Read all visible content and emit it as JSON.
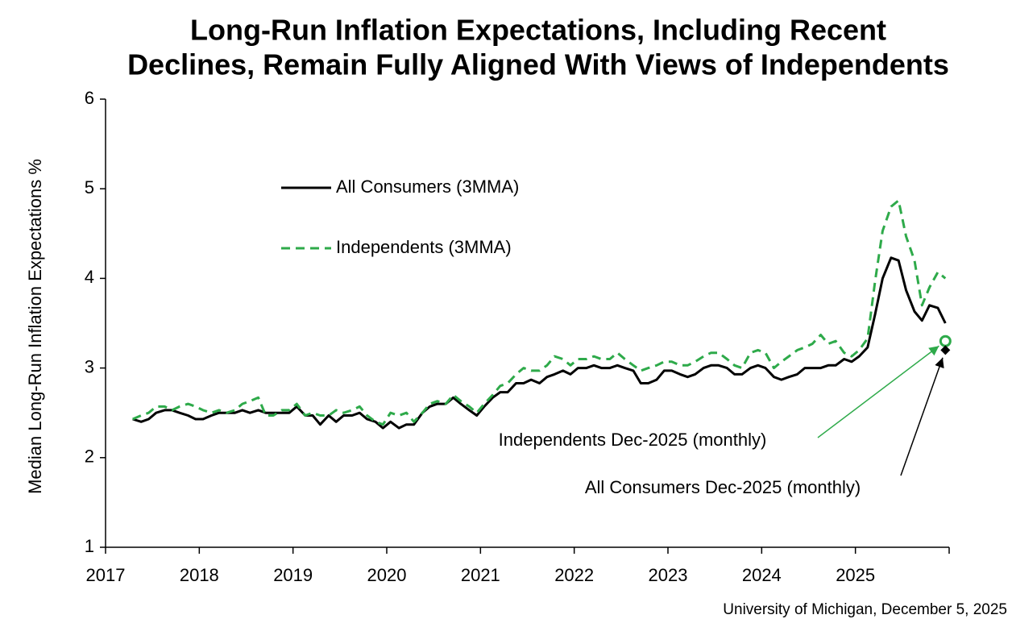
{
  "chart_data": {
    "type": "line",
    "title": [
      "Long-Run Inflation Expectations, Including Recent",
      "Declines, Remain Fully Aligned With Views of Independents"
    ],
    "y_label": "Median Long-Run Inflation Expectations %",
    "source": "University of Michigan, December 5, 2025",
    "xlim": [
      2017,
      2026
    ],
    "xticks": [
      2017,
      2018,
      2019,
      2020,
      2021,
      2022,
      2023,
      2024,
      2025
    ],
    "ylim": [
      1,
      6
    ],
    "yticks": [
      1,
      2,
      3,
      4,
      5,
      6
    ],
    "grid": false,
    "x": [
      2017.29,
      2017.38,
      2017.46,
      2017.54,
      2017.63,
      2017.71,
      2017.79,
      2017.88,
      2017.96,
      2018.04,
      2018.13,
      2018.21,
      2018.29,
      2018.38,
      2018.46,
      2018.54,
      2018.63,
      2018.71,
      2018.79,
      2018.88,
      2018.96,
      2019.04,
      2019.13,
      2019.21,
      2019.29,
      2019.38,
      2019.46,
      2019.54,
      2019.63,
      2019.71,
      2019.79,
      2019.88,
      2019.96,
      2020.04,
      2020.13,
      2020.21,
      2020.29,
      2020.38,
      2020.46,
      2020.54,
      2020.63,
      2020.71,
      2020.79,
      2020.88,
      2020.96,
      2021.04,
      2021.13,
      2021.21,
      2021.29,
      2021.38,
      2021.46,
      2021.54,
      2021.63,
      2021.71,
      2021.79,
      2021.88,
      2021.96,
      2022.04,
      2022.13,
      2022.21,
      2022.29,
      2022.38,
      2022.46,
      2022.54,
      2022.63,
      2022.71,
      2022.79,
      2022.88,
      2022.96,
      2023.04,
      2023.13,
      2023.21,
      2023.29,
      2023.38,
      2023.46,
      2023.54,
      2023.63,
      2023.71,
      2023.79,
      2023.88,
      2023.96,
      2024.04,
      2024.13,
      2024.21,
      2024.29,
      2024.38,
      2024.46,
      2024.54,
      2024.63,
      2024.71,
      2024.79,
      2024.88,
      2024.96,
      2025.04,
      2025.13,
      2025.21,
      2025.29,
      2025.38,
      2025.46,
      2025.54,
      2025.63,
      2025.71,
      2025.79,
      2025.88,
      2025.96
    ],
    "series": [
      {
        "name": "All Consumers (3MMA)",
        "color": "#000000",
        "style": "solid",
        "values": [
          2.43,
          2.4,
          2.43,
          2.5,
          2.53,
          2.53,
          2.5,
          2.47,
          2.43,
          2.43,
          2.47,
          2.5,
          2.5,
          2.5,
          2.53,
          2.5,
          2.53,
          2.5,
          2.5,
          2.5,
          2.5,
          2.57,
          2.47,
          2.47,
          2.37,
          2.47,
          2.4,
          2.47,
          2.47,
          2.5,
          2.43,
          2.4,
          2.33,
          2.4,
          2.33,
          2.37,
          2.37,
          2.5,
          2.57,
          2.6,
          2.6,
          2.67,
          2.6,
          2.53,
          2.47,
          2.57,
          2.67,
          2.73,
          2.73,
          2.83,
          2.83,
          2.87,
          2.83,
          2.9,
          2.93,
          2.97,
          2.93,
          3.0,
          3.0,
          3.03,
          3.0,
          3.0,
          3.03,
          3.0,
          2.97,
          2.83,
          2.83,
          2.87,
          2.97,
          2.97,
          2.93,
          2.9,
          2.93,
          3.0,
          3.03,
          3.03,
          3.0,
          2.93,
          2.93,
          3.0,
          3.03,
          3.0,
          2.9,
          2.87,
          2.9,
          2.93,
          3.0,
          3.0,
          3.0,
          3.03,
          3.03,
          3.1,
          3.07,
          3.13,
          3.23,
          3.6,
          4.0,
          4.23,
          4.2,
          3.87,
          3.63,
          3.53,
          3.7,
          3.67,
          3.5
        ]
      },
      {
        "name": "Independents (3MMA)",
        "color": "#2eaa4a",
        "style": "dashed",
        "values": [
          2.43,
          2.47,
          2.5,
          2.57,
          2.57,
          2.53,
          2.57,
          2.6,
          2.57,
          2.53,
          2.5,
          2.53,
          2.5,
          2.53,
          2.6,
          2.63,
          2.67,
          2.47,
          2.47,
          2.53,
          2.53,
          2.6,
          2.47,
          2.5,
          2.47,
          2.47,
          2.53,
          2.5,
          2.53,
          2.57,
          2.47,
          2.4,
          2.37,
          2.5,
          2.47,
          2.5,
          2.4,
          2.5,
          2.6,
          2.63,
          2.6,
          2.7,
          2.63,
          2.57,
          2.5,
          2.6,
          2.7,
          2.8,
          2.83,
          2.93,
          3.0,
          2.97,
          2.97,
          3.03,
          3.13,
          3.1,
          3.03,
          3.1,
          3.1,
          3.13,
          3.1,
          3.1,
          3.17,
          3.1,
          3.03,
          2.97,
          3.0,
          3.03,
          3.07,
          3.07,
          3.03,
          3.03,
          3.07,
          3.13,
          3.17,
          3.17,
          3.1,
          3.03,
          3.0,
          3.17,
          3.2,
          3.17,
          3.0,
          3.07,
          3.13,
          3.2,
          3.23,
          3.27,
          3.37,
          3.27,
          3.3,
          3.17,
          3.13,
          3.2,
          3.33,
          3.97,
          4.53,
          4.8,
          4.87,
          4.47,
          4.2,
          3.7,
          3.9,
          4.07,
          4.0
        ]
      }
    ],
    "monthly_points": [
      {
        "name": "Independents Dec-2025 (monthly)",
        "x": 2025.96,
        "y": 3.3,
        "color": "#2eaa4a",
        "marker": "circle"
      },
      {
        "name": "All Consumers Dec-2025 (monthly)",
        "x": 2025.96,
        "y": 3.2,
        "color": "#000000",
        "marker": "diamond"
      }
    ]
  }
}
